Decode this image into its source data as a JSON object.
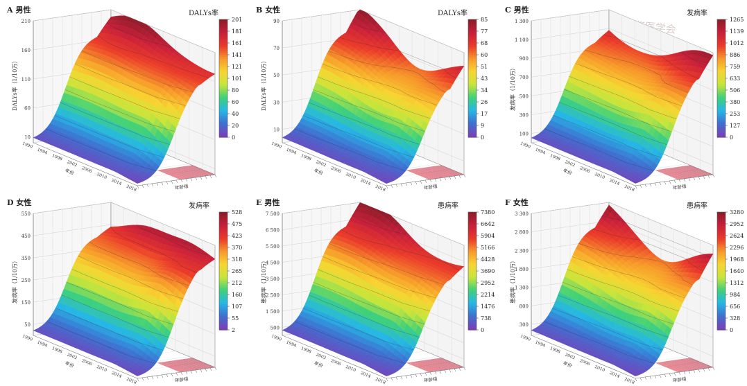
{
  "figure": {
    "watermark": "中华医学会",
    "panels": [
      {
        "id": "A",
        "letter": "A",
        "sex": "男性",
        "cb_title": "DALYs率",
        "z_title": "DALYs率（1/10万）"
      },
      {
        "id": "B",
        "letter": "B",
        "sex": "女性",
        "cb_title": "DALYs率",
        "z_title": "DALYs率（1/10万）"
      },
      {
        "id": "C",
        "letter": "C",
        "sex": "男性",
        "cb_title": "发病率",
        "z_title": "发病率（1/10万）"
      },
      {
        "id": "D",
        "letter": "D",
        "sex": "女性",
        "cb_title": "发病率",
        "z_title": "发病率（1/10万）"
      },
      {
        "id": "E",
        "letter": "E",
        "sex": "男性",
        "cb_title": "患病率",
        "z_title": "患病率（1/10万）"
      },
      {
        "id": "F",
        "letter": "F",
        "sex": "女性",
        "cb_title": "患病率",
        "z_title": "患病率（1/10万）"
      }
    ],
    "colormap": [
      "#7a3fb8",
      "#3f6fd0",
      "#25b7e6",
      "#3fd17a",
      "#c6e53b",
      "#f7d531",
      "#f79a2a",
      "#ea3a2a",
      "#c8203a",
      "#8f1d2a"
    ]
  },
  "chart_data": [
    {
      "type": "surface",
      "panel": "A",
      "title": "男性",
      "zlabel": "DALYs率（1/10万）",
      "x_label": "年份",
      "y_label": "年龄组",
      "years": [
        "1990",
        "1994",
        "1998",
        "2002",
        "2006",
        "2010",
        "2014",
        "2018"
      ],
      "z_ticks": [
        10,
        60,
        110,
        160,
        210
      ],
      "colorbar_title": "DALYs率",
      "colorbar_ticks": [
        "201",
        "181",
        "161",
        "141",
        "121",
        "101",
        "80",
        "60",
        "40",
        "20",
        "0"
      ],
      "zlim": [
        0,
        210
      ],
      "max": 201
    },
    {
      "type": "surface",
      "panel": "B",
      "title": "女性",
      "zlabel": "DALYs率（1/10万）",
      "x_label": "年份",
      "y_label": "年龄组",
      "years": [
        "1990",
        "1994",
        "1998",
        "2002",
        "2006",
        "2010",
        "2014",
        "2018"
      ],
      "z_ticks": [
        10,
        30,
        50,
        70,
        90
      ],
      "colorbar_title": "DALYs率",
      "colorbar_ticks": [
        "85",
        "77",
        "68",
        "60",
        "51",
        "43",
        "34",
        "26",
        "17",
        "9",
        "0"
      ],
      "zlim": [
        0,
        90
      ],
      "max": 85
    },
    {
      "type": "surface",
      "panel": "C",
      "title": "男性",
      "zlabel": "发病率（1/10万）",
      "x_label": "年份",
      "y_label": "年龄组",
      "years": [
        "1990",
        "1994",
        "1998",
        "2002",
        "2006",
        "2010",
        "2014",
        "2018"
      ],
      "z_ticks": [
        100,
        300,
        500,
        700,
        900,
        1100,
        1300
      ],
      "colorbar_title": "发病率",
      "colorbar_ticks": [
        "1265",
        "1139",
        "1012",
        "886",
        "759",
        "633",
        "506",
        "380",
        "253",
        "127",
        "0"
      ],
      "zlim": [
        0,
        1300
      ],
      "max": 1265
    },
    {
      "type": "surface",
      "panel": "D",
      "title": "女性",
      "zlabel": "发病率（1/10万）",
      "x_label": "年份",
      "y_label": "年龄组",
      "years": [
        "1990",
        "1994",
        "1998",
        "2002",
        "2006",
        "2010",
        "2014",
        "2018"
      ],
      "z_ticks": [
        50,
        150,
        250,
        350,
        450,
        550
      ],
      "colorbar_title": "发病率",
      "colorbar_ticks": [
        "528",
        "475",
        "423",
        "370",
        "318",
        "265",
        "212",
        "160",
        "107",
        "55",
        "2"
      ],
      "zlim": [
        0,
        550
      ],
      "max": 528
    },
    {
      "type": "surface",
      "panel": "E",
      "title": "男性",
      "zlabel": "患病率（1/10万）",
      "x_label": "年份",
      "y_label": "年龄组",
      "years": [
        "1990",
        "1994",
        "1998",
        "2002",
        "2006",
        "2010",
        "2014",
        "2018"
      ],
      "z_ticks": [
        500,
        1500,
        2500,
        3500,
        4500,
        5500,
        6500,
        7500
      ],
      "colorbar_title": "患病率",
      "colorbar_ticks": [
        "7380",
        "6642",
        "5904",
        "5166",
        "4428",
        "3690",
        "2952",
        "2214",
        "1476",
        "738",
        "0"
      ],
      "zlim": [
        0,
        7500
      ],
      "max": 7380
    },
    {
      "type": "surface",
      "panel": "F",
      "title": "女性",
      "zlabel": "患病率（1/10万）",
      "x_label": "年份",
      "y_label": "年龄组",
      "years": [
        "1990",
        "1994",
        "1998",
        "2002",
        "2006",
        "2010",
        "2014",
        "2018"
      ],
      "z_ticks": [
        300,
        800,
        1300,
        1800,
        2300,
        2800,
        3300
      ],
      "colorbar_title": "患病率",
      "colorbar_ticks": [
        "3280",
        "2952",
        "2624",
        "2296",
        "1968",
        "1640",
        "1312",
        "984",
        "656",
        "328",
        "0"
      ],
      "zlim": [
        0,
        3300
      ],
      "max": 3280
    }
  ]
}
